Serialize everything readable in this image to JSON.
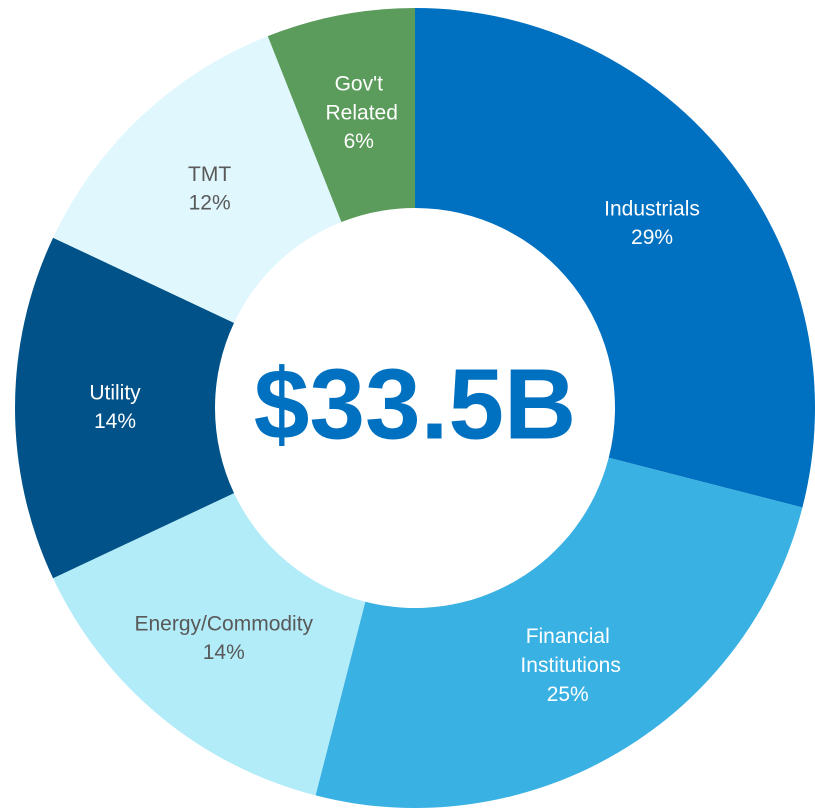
{
  "chart_data": {
    "type": "donut",
    "center_label": "$33.5B",
    "center_color": "#0070c0",
    "categories": [
      "Industrials",
      "Financial Institutions",
      "Energy/Commodity",
      "Utility",
      "TMT",
      "Gov't Related"
    ],
    "values": [
      29,
      25,
      14,
      14,
      12,
      6
    ],
    "value_labels": [
      "29%",
      "25%",
      "14%",
      "14%",
      "12%",
      "6%"
    ],
    "colors": [
      "#0070c0",
      "#3ab1e3",
      "#b3ecf9",
      "#005288",
      "#e0f7fd",
      "#5b9b5b"
    ]
  }
}
